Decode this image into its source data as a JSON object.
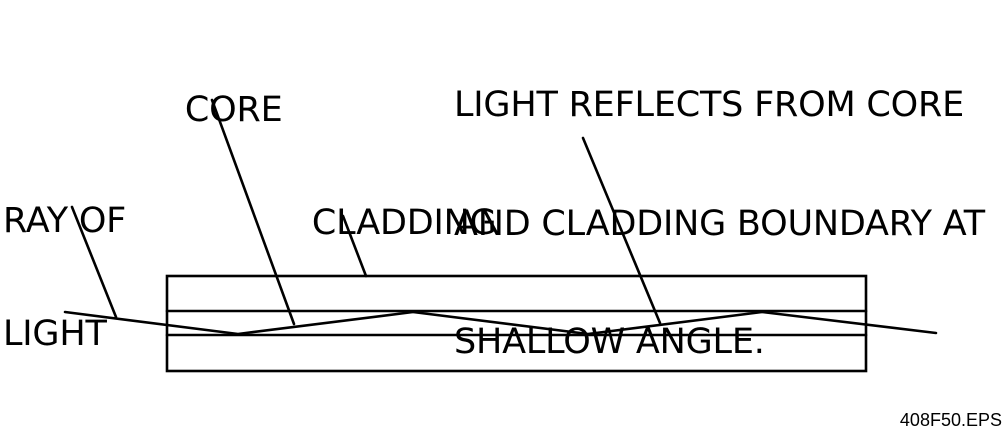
{
  "labels": {
    "core": "CORE",
    "ray_of_light": [
      "RAY OF",
      "LIGHT"
    ],
    "cladding": "CLADDING",
    "reflection_note": [
      "LIGHT REFLECTS FROM CORE",
      "AND CLADDING BOUNDARY AT",
      "SHALLOW ANGLE."
    ]
  },
  "file_name": "408F50.EPS",
  "colors": {
    "line": "#000000",
    "background": "#ffffff"
  }
}
